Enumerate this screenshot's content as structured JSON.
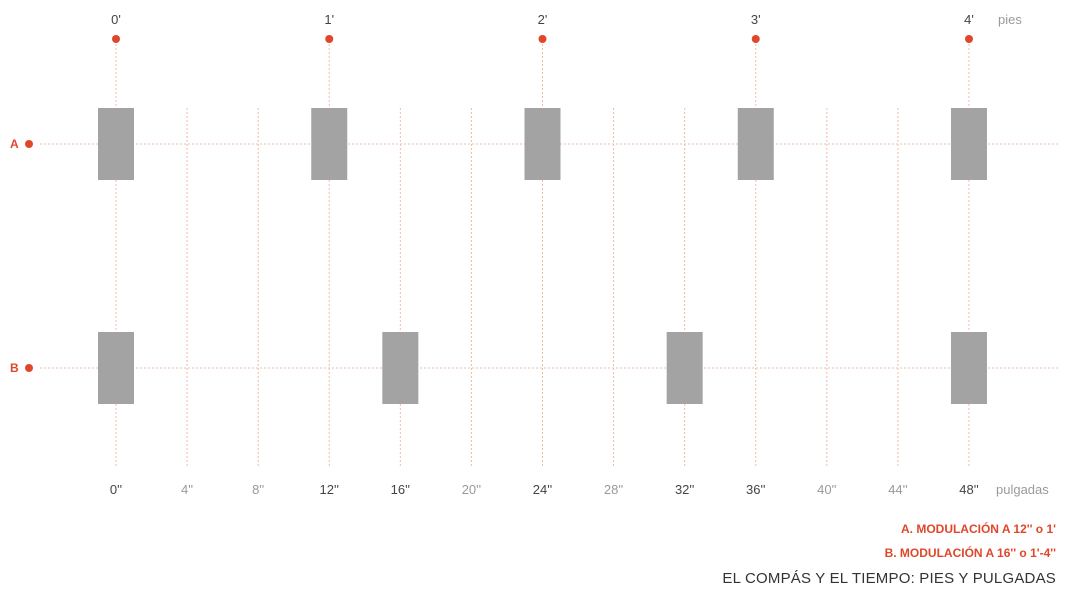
{
  "diagram": {
    "feet_unit": "pies",
    "inch_unit": "pulgadas",
    "feet_labels": [
      "0'",
      "1'",
      "2'",
      "3'",
      "4'"
    ],
    "inch_labels": [
      "0''",
      "4''",
      "8''",
      "12''",
      "16''",
      "20''",
      "24''",
      "28''",
      "32''",
      "36''",
      "40''",
      "44''",
      "48''"
    ],
    "inch_label_emphasis": [
      true,
      false,
      false,
      true,
      true,
      false,
      true,
      false,
      true,
      true,
      false,
      false,
      true
    ],
    "rows": [
      {
        "id": "A",
        "label": "A",
        "module_inches": 12,
        "posts_at_inches": [
          0,
          12,
          24,
          36,
          48
        ]
      },
      {
        "id": "B",
        "label": "B",
        "module_inches": 16,
        "posts_at_inches": [
          0,
          16,
          32,
          48
        ]
      }
    ]
  },
  "legend": {
    "a": "A. MODULACIÓN A 12'' o 1'",
    "b": "B. MODULACIÓN A 16'' o 1'-4''"
  },
  "title": "EL COMPÁS Y EL TIEMPO: PIES Y PULGADAS",
  "colors": {
    "accent": "#e0472a",
    "guide": "#f3b9a8",
    "post": "#a3a3a3",
    "label_dark": "#444444",
    "label_light": "#9a9a9a"
  }
}
